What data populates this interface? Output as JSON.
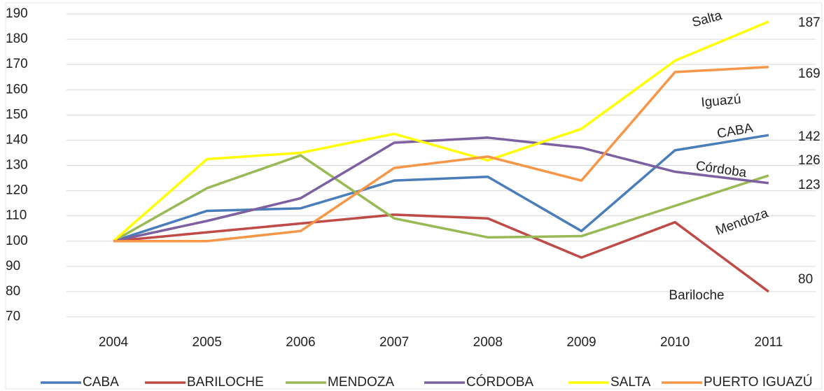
{
  "chart_data": {
    "type": "line",
    "categories": [
      "2004",
      "2005",
      "2006",
      "2007",
      "2008",
      "2009",
      "2010",
      "2011"
    ],
    "series": [
      {
        "name": "CABA",
        "color": "#4a7ebb",
        "values": [
          100,
          112,
          113,
          124,
          125.5,
          104,
          136,
          142
        ]
      },
      {
        "name": "BARILOCHE",
        "color": "#be4b48",
        "values": [
          100,
          103.5,
          107,
          110.5,
          109,
          93.5,
          107.5,
          80
        ]
      },
      {
        "name": "MENDOZA",
        "color": "#98b954",
        "values": [
          100,
          121,
          134,
          109,
          101.5,
          102,
          114,
          126
        ]
      },
      {
        "name": "CÓRDOBA",
        "color": "#7d60a0",
        "values": [
          100,
          108,
          117,
          139,
          141,
          137,
          127.5,
          123
        ]
      },
      {
        "name": "SALTA",
        "color": "#ffff00",
        "values": [
          100,
          132.5,
          135,
          142.5,
          132,
          144.5,
          171.5,
          187
        ]
      },
      {
        "name": "PUERTO IGUAZÚ",
        "color": "#f79646",
        "values": [
          100,
          100,
          104,
          129,
          133.5,
          124,
          167,
          169
        ]
      }
    ],
    "ylim": [
      70,
      190
    ],
    "yticks": [
      70,
      80,
      90,
      100,
      110,
      120,
      130,
      140,
      150,
      160,
      170,
      180,
      190
    ],
    "grid": true,
    "legend": "bottom",
    "annotations": [
      "CABA",
      "Bariloche",
      "Mendoza",
      "Córdoba",
      "Salta",
      "Iguazú"
    ]
  }
}
